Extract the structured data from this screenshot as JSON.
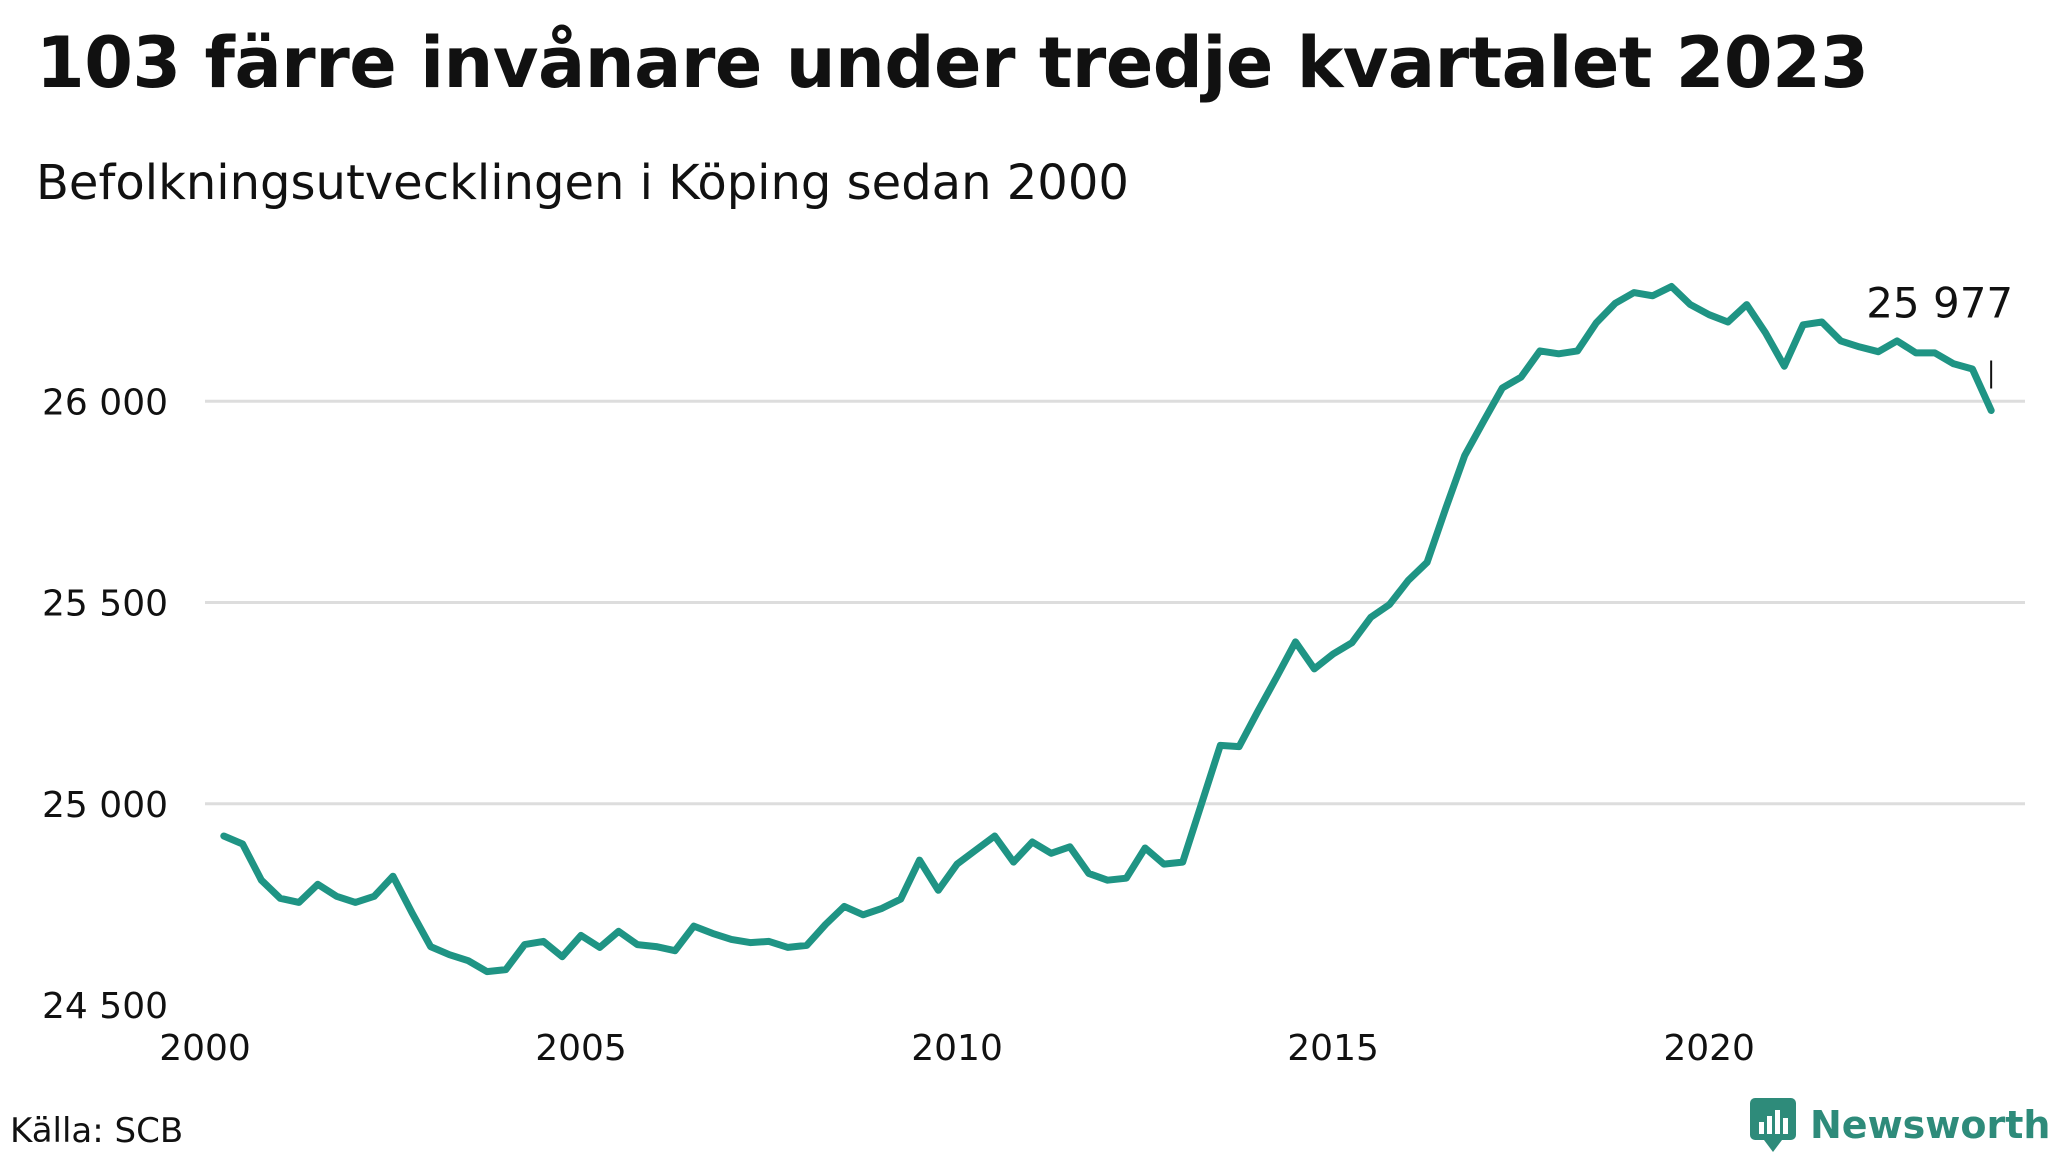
{
  "title": "103 färre invånare under tredje kvartalet 2023",
  "subtitle": "Befolkningsutvecklingen i Köping sedan 2000",
  "source": "Källa: SCB",
  "brand": "Newsworthy",
  "colors": {
    "line": "#1f9484",
    "grid": "#dddddd",
    "brand": "#2e8b7a"
  },
  "chart_data": {
    "type": "line",
    "title": "103 färre invånare under tredje kvartalet 2023",
    "subtitle": "Befolkningsutvecklingen i Köping sedan 2000",
    "xlabel": "",
    "ylabel": "",
    "xlim": [
      2000,
      2024.2
    ],
    "ylim": [
      24500,
      26500
    ],
    "x_ticks": [
      2000,
      2005,
      2010,
      2015,
      2020
    ],
    "x_tick_labels": [
      "2000",
      "2005",
      "2010",
      "2015",
      "2020"
    ],
    "y_ticks": [
      24500,
      25000,
      25500,
      26000
    ],
    "y_tick_labels": [
      "24 500",
      "25 000",
      "25 500",
      "26 000"
    ],
    "grid": true,
    "end_label": "25 977",
    "series": [
      {
        "x": [
          2000.25,
          2000.5,
          2000.75,
          2001.0,
          2001.25,
          2001.5,
          2001.75,
          2002.0,
          2002.25,
          2002.5,
          2002.75,
          2003.0,
          2003.25,
          2003.5,
          2003.75,
          2004.0,
          2004.25,
          2004.5,
          2004.75,
          2005.0,
          2005.25,
          2005.5,
          2005.75,
          2006.0,
          2006.25,
          2006.5,
          2006.75,
          2007.0,
          2007.25,
          2007.5,
          2007.75,
          2008.0,
          2008.25,
          2008.5,
          2008.75,
          2009.0,
          2009.25,
          2009.5,
          2009.75,
          2010.0,
          2010.25,
          2010.5,
          2010.75,
          2011.0,
          2011.25,
          2011.5,
          2011.75,
          2012.0,
          2012.25,
          2012.5,
          2012.75,
          2013.0,
          2013.25,
          2013.5,
          2013.75,
          2014.0,
          2014.25,
          2014.5,
          2014.75,
          2015.0,
          2015.25,
          2015.5,
          2015.75,
          2016.0,
          2016.25,
          2016.5,
          2016.75,
          2017.0,
          2017.25,
          2017.5,
          2017.75,
          2018.0,
          2018.25,
          2018.5,
          2018.75,
          2019.0,
          2019.25,
          2019.5,
          2019.75,
          2020.0,
          2020.25,
          2020.5,
          2020.75,
          2021.0,
          2021.25,
          2021.5,
          2021.75,
          2022.0,
          2022.25,
          2022.5,
          2022.75,
          2023.0,
          2023.25,
          2023.5,
          2023.75
        ],
        "values": [
          24920,
          24900,
          24810,
          24765,
          24755,
          24800,
          24770,
          24755,
          24770,
          24820,
          24730,
          24645,
          24625,
          24610,
          24583,
          24588,
          24650,
          24658,
          24620,
          24673,
          24643,
          24683,
          24650,
          24645,
          24635,
          24696,
          24678,
          24663,
          24655,
          24658,
          24643,
          24648,
          24700,
          24745,
          24724,
          24740,
          24763,
          24860,
          24785,
          24850,
          24885,
          24920,
          24855,
          24905,
          24877,
          24893,
          24827,
          24810,
          24815,
          24890,
          24850,
          24855,
          25000,
          25145,
          25142,
          25230,
          25315,
          25402,
          25335,
          25372,
          25400,
          25463,
          25495,
          25555,
          25600,
          25735,
          25865,
          25950,
          26033,
          26060,
          26125,
          26118,
          26125,
          26195,
          26243,
          26270,
          26262,
          26285,
          26240,
          26215,
          26197,
          26240,
          26170,
          26087,
          26190,
          26197,
          26150,
          26135,
          26123,
          26150,
          26120,
          26120,
          26093,
          26080,
          25977
        ]
      }
    ]
  }
}
